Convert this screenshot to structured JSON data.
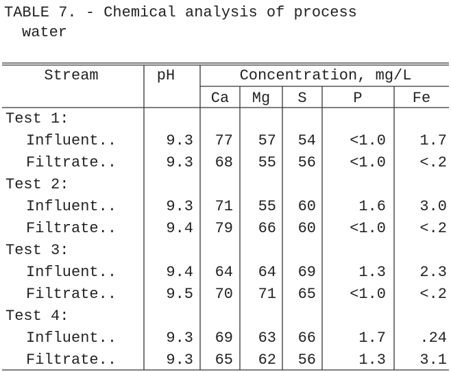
{
  "title_lines": [
    "TABLE 7. - Chemical analysis of process",
    "water"
  ],
  "table": {
    "header": {
      "stream": "Stream",
      "ph": "pH",
      "concentration": "Concentration, mg/L",
      "elements": [
        "Ca",
        "Mg",
        "S",
        "P",
        "Fe"
      ]
    },
    "groups": [
      {
        "label": "Test 1:",
        "rows": [
          {
            "label": "Influent..",
            "values": [
              "9.3",
              "77",
              "57",
              "54",
              "<1.0",
              "1.7"
            ]
          },
          {
            "label": "Filtrate..",
            "values": [
              "9.3",
              "68",
              "55",
              "56",
              "<1.0",
              "<.2"
            ]
          }
        ]
      },
      {
        "label": "Test 2:",
        "rows": [
          {
            "label": "Influent..",
            "values": [
              "9.3",
              "71",
              "55",
              "60",
              "1.6",
              "3.0"
            ]
          },
          {
            "label": "Filtrate..",
            "values": [
              "9.4",
              "79",
              "66",
              "60",
              "<1.0",
              "<.2"
            ]
          }
        ]
      },
      {
        "label": "Test 3:",
        "rows": [
          {
            "label": "Influent..",
            "values": [
              "9.4",
              "64",
              "64",
              "69",
              "1.3",
              "2.3"
            ]
          },
          {
            "label": "Filtrate..",
            "values": [
              "9.5",
              "70",
              "71",
              "65",
              "<1.0",
              "<.2"
            ]
          }
        ]
      },
      {
        "label": "Test 4:",
        "rows": [
          {
            "label": "Influent..",
            "values": [
              "9.3",
              "69",
              "63",
              "66",
              "1.7",
              ".24"
            ]
          },
          {
            "label": "Filtrate..",
            "values": [
              "9.3",
              "65",
              "62",
              "56",
              "1.3",
              "3.1"
            ]
          }
        ]
      }
    ]
  }
}
